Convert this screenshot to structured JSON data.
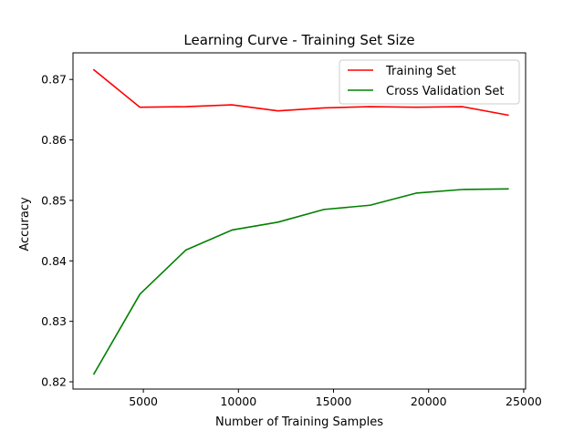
{
  "chart_data": {
    "type": "line",
    "title": "Learning Curve - Training Set Size",
    "xlabel": "Number of Training Samples",
    "ylabel": "Accuracy",
    "xlim": [
      1300,
      25100
    ],
    "ylim": [
      0.8188,
      0.8744
    ],
    "xticks": [
      5000,
      10000,
      15000,
      20000,
      25000
    ],
    "xtick_labels": [
      "5000",
      "10000",
      "15000",
      "20000",
      "25000"
    ],
    "yticks": [
      0.82,
      0.83,
      0.84,
      0.85,
      0.86,
      0.87
    ],
    "ytick_labels": [
      "0.82",
      "0.83",
      "0.84",
      "0.85",
      "0.86",
      "0.87"
    ],
    "grid": false,
    "legend_position": "top-right",
    "x": [
      2400,
      4820,
      7240,
      9660,
      12080,
      14500,
      16920,
      19340,
      21760,
      24180
    ],
    "series": [
      {
        "name": "Training Set",
        "color": "#ff0000",
        "values": [
          0.8716,
          0.8654,
          0.8655,
          0.8658,
          0.8648,
          0.8653,
          0.8655,
          0.8654,
          0.8655,
          0.8641
        ]
      },
      {
        "name": "Cross Validation Set",
        "color": "#008000",
        "values": [
          0.8213,
          0.8345,
          0.8418,
          0.8451,
          0.8464,
          0.8485,
          0.8492,
          0.8512,
          0.8518,
          0.8519
        ]
      }
    ]
  }
}
